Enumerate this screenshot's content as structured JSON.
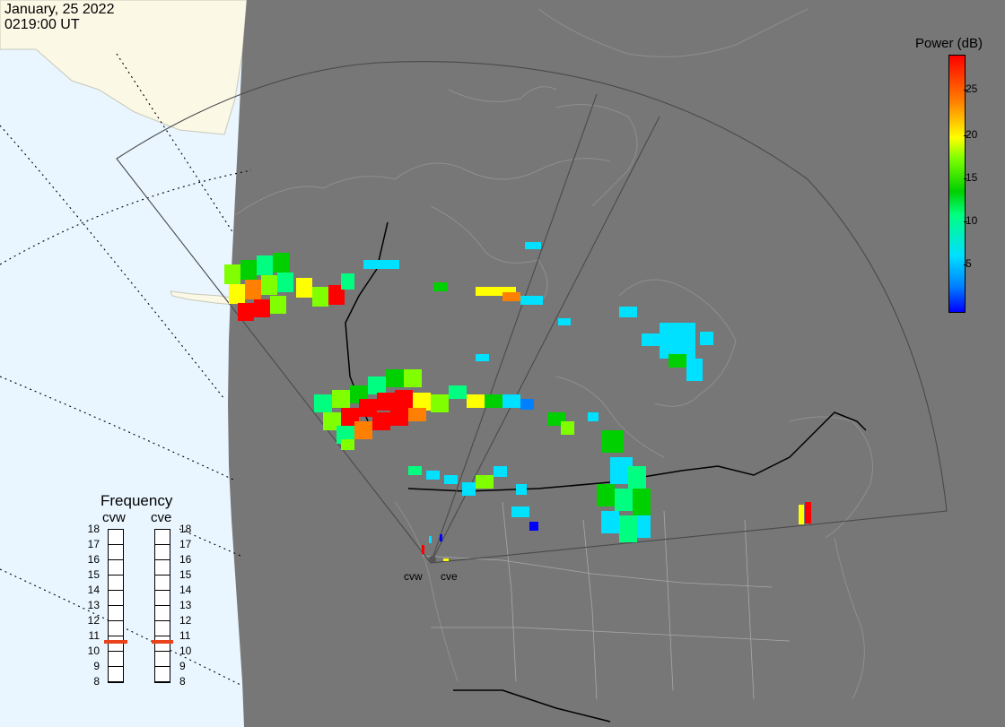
{
  "header": {
    "date": "January, 25 2022",
    "time": "0219:00 UT"
  },
  "colorbar": {
    "title": "Power (dB)",
    "ticks": [
      "25",
      "20",
      "15",
      "10",
      "5"
    ],
    "gradient_colors": [
      "#0000ff",
      "#0080ff",
      "#00e0ff",
      "#00ff80",
      "#00d000",
      "#80ff00",
      "#ffff00",
      "#ff8000",
      "#ff0000"
    ]
  },
  "frequency_panel": {
    "title": "Frequency",
    "radars": [
      {
        "code": "cvw",
        "freq_mhz": 10.6
      },
      {
        "code": "cve",
        "freq_mhz": 10.6
      }
    ],
    "scale": [
      "18",
      "17",
      "16",
      "15",
      "14",
      "13",
      "12",
      "11",
      "10",
      "9",
      "8"
    ]
  },
  "sites": [
    {
      "label": "cvw"
    },
    {
      "label": "cve"
    }
  ],
  "colors": {
    "ocean": "#e9f6ff",
    "land_daylight": "#fbf8e6",
    "night_shade": "#777777",
    "coast": "#9a9a9a",
    "border": "#000000",
    "marker": "#e8431a"
  }
}
